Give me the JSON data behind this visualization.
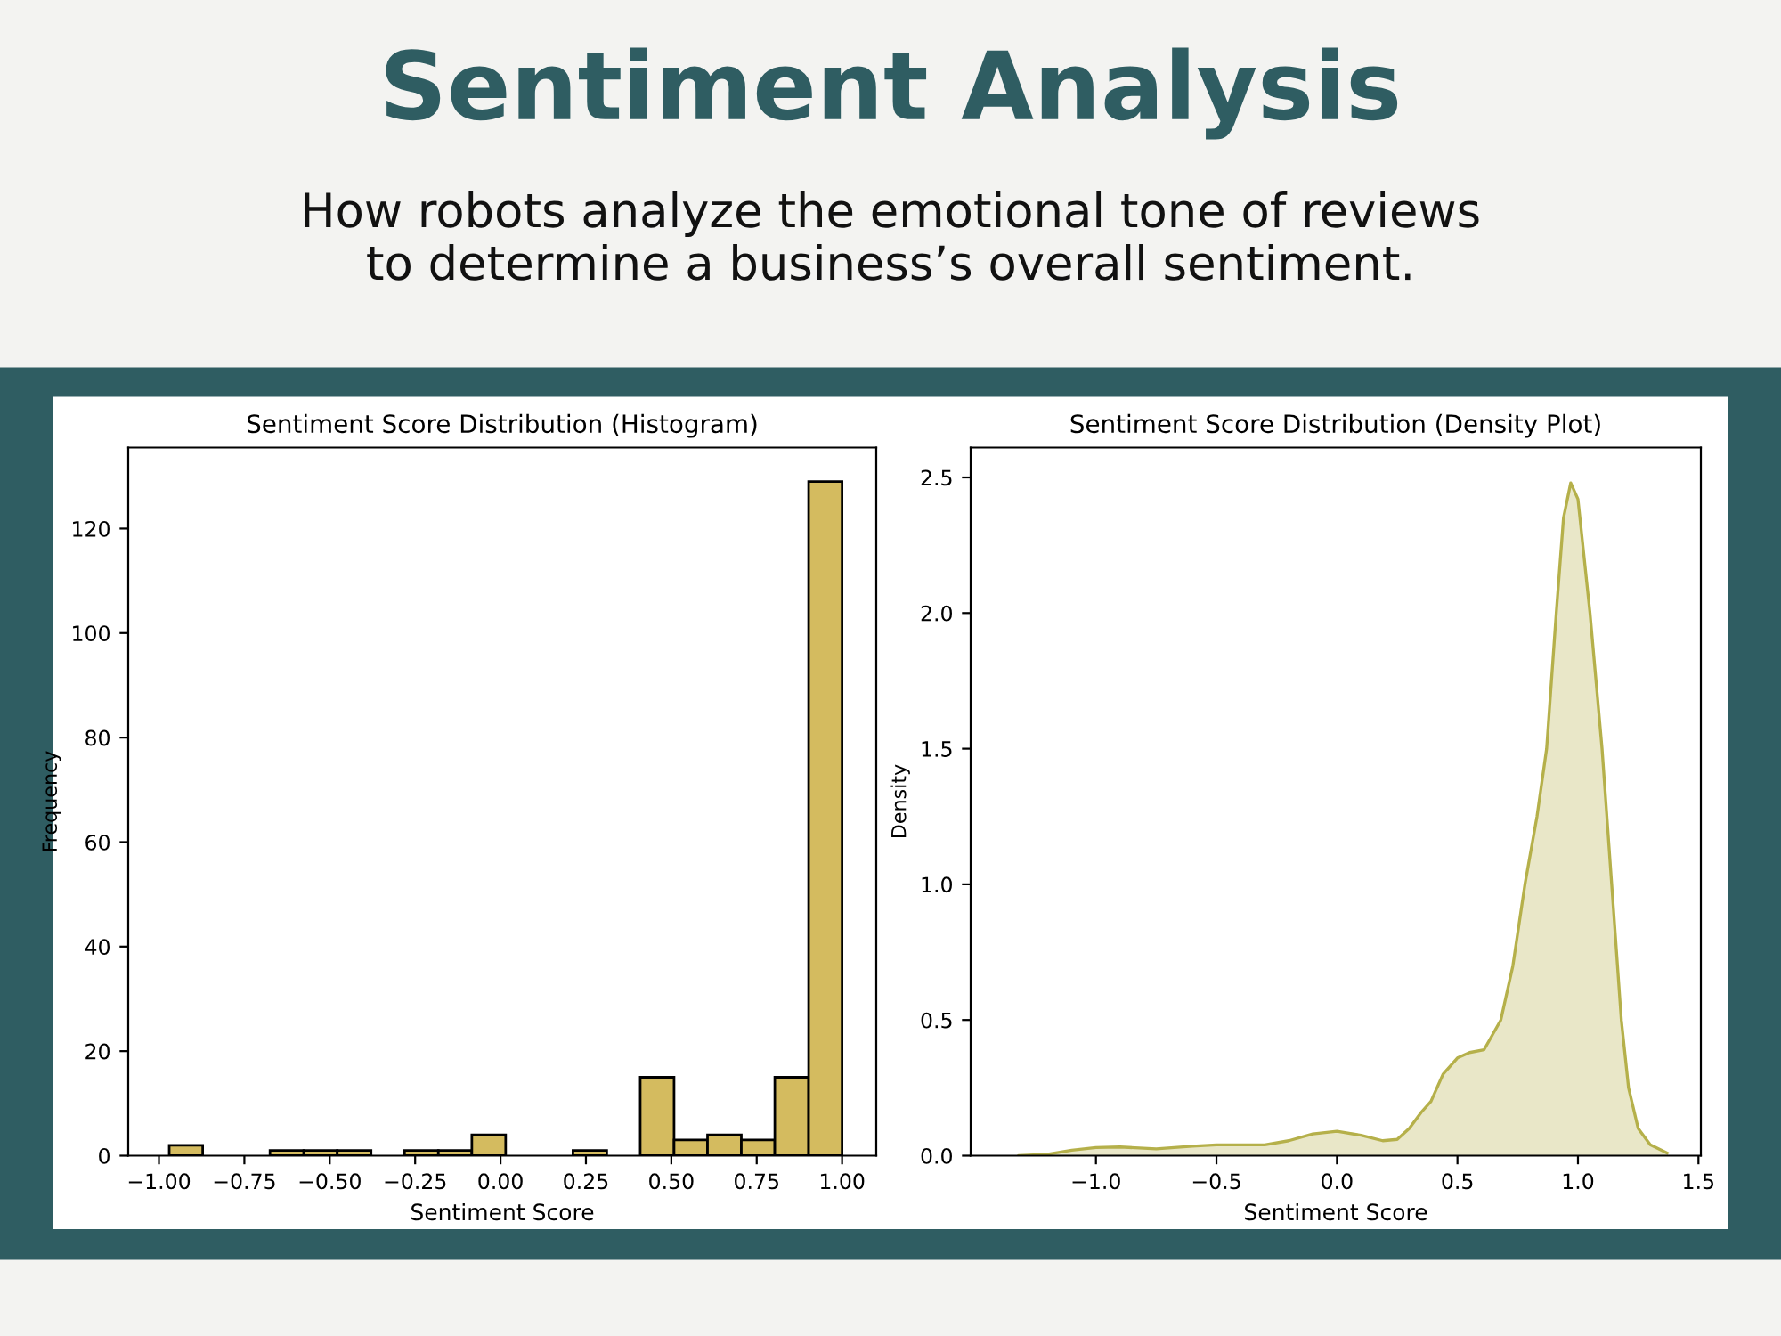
{
  "chart_data": [
    {
      "type": "histogram",
      "title": "Sentiment Score Distribution (Histogram)",
      "xlabel": "Sentiment Score",
      "ylabel": "Frequency",
      "annotations": [
        "Sentiment Analysis",
        "How robots analyze the emotional tone of reviews\nto determine a business’s overall sentiment."
      ],
      "bins": [
        -0.97,
        -0.872,
        -0.773,
        -0.675,
        -0.576,
        -0.478,
        -0.379,
        -0.281,
        -0.182,
        -0.084,
        0.015,
        0.114,
        0.212,
        0.311,
        0.409,
        0.508,
        0.606,
        0.705,
        0.803,
        0.902,
        1.0
      ],
      "values": [
        2,
        0,
        0,
        1,
        1,
        1,
        0,
        1,
        1,
        4,
        0,
        0,
        1,
        0,
        15,
        3,
        4,
        3,
        15,
        129
      ],
      "color": "#d4bb5f",
      "xlim": [
        -1.09,
        1.1
      ],
      "xticks": [
        {
          "value": -1.0,
          "label": "−1.00"
        },
        {
          "value": -0.75,
          "label": "−0.75"
        },
        {
          "value": -0.5,
          "label": "−0.50"
        },
        {
          "value": -0.25,
          "label": "−0.25"
        },
        {
          "value": 0,
          "label": "0.00"
        },
        {
          "value": 0.25,
          "label": "0.25"
        },
        {
          "value": 0.5,
          "label": "0.50"
        },
        {
          "value": 0.75,
          "label": "0.75"
        },
        {
          "value": 1.0,
          "label": "1.00"
        }
      ],
      "ylim": [
        0,
        135.5
      ],
      "yticks": [
        0,
        20,
        40,
        60,
        80,
        100,
        120
      ],
      "grid": false
    },
    {
      "type": "area",
      "title": "Sentiment Score Distribution (Density Plot)",
      "xlabel": "Sentiment Score",
      "ylabel": "Density",
      "series": [
        {
          "color": "#b5b04a",
          "x": [
            -1.32,
            -1.2,
            -1.1,
            -1.0,
            -0.9,
            -0.75,
            -0.6,
            -0.5,
            -0.3,
            -0.2,
            -0.1,
            0.0,
            0.1,
            0.19,
            0.25,
            0.3,
            0.35,
            0.39,
            0.44,
            0.5,
            0.55,
            0.61,
            0.68,
            0.73,
            0.78,
            0.83,
            0.87,
            0.91,
            0.94,
            0.97,
            1.0,
            1.05,
            1.1,
            1.14,
            1.18,
            1.21,
            1.25,
            1.3,
            1.37
          ],
          "values": [
            0,
            0.005,
            0.02,
            0.03,
            0.032,
            0.025,
            0.035,
            0.04,
            0.04,
            0.055,
            0.08,
            0.09,
            0.075,
            0.055,
            0.06,
            0.1,
            0.16,
            0.2,
            0.3,
            0.36,
            0.38,
            0.39,
            0.5,
            0.7,
            1.0,
            1.25,
            1.5,
            2.0,
            2.35,
            2.48,
            2.42,
            2.0,
            1.5,
            1.0,
            0.5,
            0.25,
            0.1,
            0.04,
            0.01
          ]
        }
      ],
      "xlim": [
        -1.52,
        1.51
      ],
      "xticks": [
        {
          "value": -1.0,
          "label": "−1.0"
        },
        {
          "value": -0.5,
          "label": "−0.5"
        },
        {
          "value": 0,
          "label": "0.0"
        },
        {
          "value": 0.5,
          "label": "0.5"
        },
        {
          "value": 1.0,
          "label": "1.0"
        },
        {
          "value": 1.5,
          "label": "1.5"
        }
      ],
      "ylim": [
        0,
        2.61
      ],
      "yticks": [
        {
          "value": 0,
          "label": "0.0"
        },
        {
          "value": 0.5,
          "label": "0.5"
        },
        {
          "value": 1.0,
          "label": "1.0"
        },
        {
          "value": 1.5,
          "label": "1.5"
        },
        {
          "value": 2.0,
          "label": "2.0"
        },
        {
          "value": 2.5,
          "label": "2.5"
        }
      ],
      "grid": false
    }
  ]
}
